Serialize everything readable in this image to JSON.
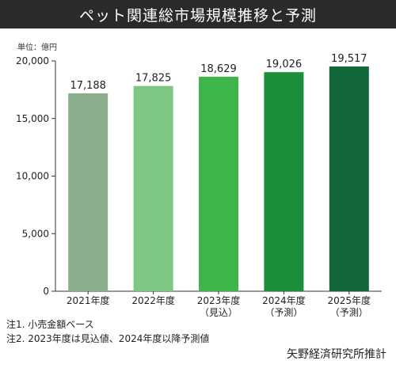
{
  "header": {
    "title": "ペット関連総市場規模推移と予測"
  },
  "unit_label": "単位：億円",
  "notes": [
    "注1. 小売金額ベース",
    "注2. 2023年度は見込値、2024年度以降予測値"
  ],
  "source": "矢野経済研究所推計",
  "chart_data": {
    "type": "bar",
    "title": "ペット関連総市場規模推移と予測",
    "xlabel": "",
    "ylabel": "",
    "ylim": [
      0,
      20000
    ],
    "yticks": [
      0,
      5000,
      10000,
      15000,
      20000
    ],
    "ytick_labels": [
      "0",
      "5,000",
      "10,000",
      "15,000",
      "20,000"
    ],
    "categories": [
      "2021年度",
      "2022年度",
      "2023年度",
      "2024年度",
      "2025年度"
    ],
    "category_sublabels": [
      "",
      "",
      "（見込）",
      "（予測）",
      "（予測）"
    ],
    "values": [
      17188,
      17825,
      18629,
      19026,
      19517
    ],
    "value_labels": [
      "17,188",
      "17,825",
      "18,629",
      "19,026",
      "19,517"
    ],
    "colors": [
      "#8aad8c",
      "#7dc684",
      "#3db54a",
      "#1c8f3a",
      "#11663a"
    ],
    "grid": false
  }
}
